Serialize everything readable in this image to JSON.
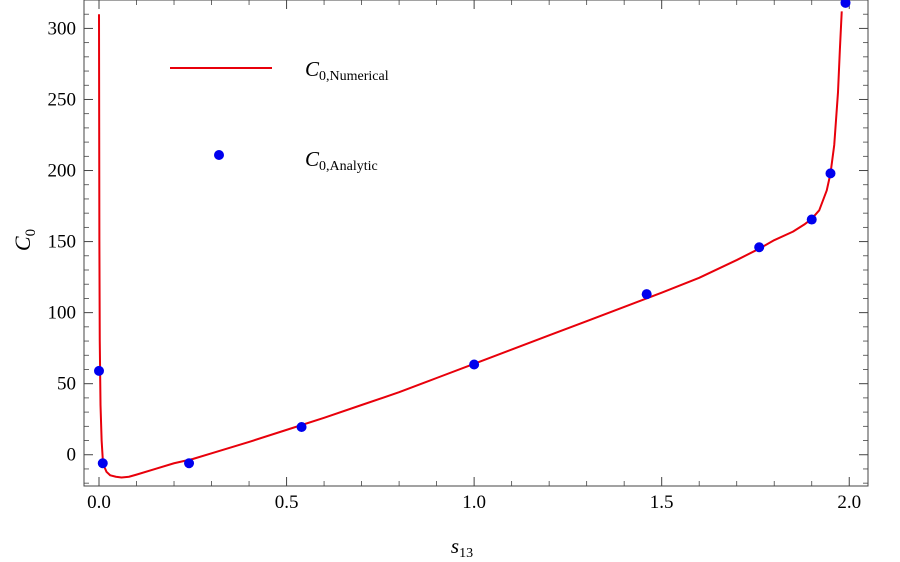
{
  "chart_data": {
    "type": "line",
    "title": "",
    "xlabel": {
      "base": "s",
      "sub": "13"
    },
    "ylabel": {
      "base": "C",
      "sub": "0"
    },
    "xlim": [
      -0.04,
      2.05
    ],
    "ylim": [
      -22,
      320
    ],
    "x_ticks": [
      0.0,
      0.5,
      1.0,
      1.5,
      2.0
    ],
    "x_tick_labels": [
      "0.0",
      "0.5",
      "1.0",
      "1.5",
      "2.0"
    ],
    "y_ticks": [
      0,
      50,
      100,
      150,
      200,
      250,
      300
    ],
    "y_tick_labels": [
      "0",
      "50",
      "100",
      "150",
      "200",
      "250",
      "300"
    ],
    "grid": false,
    "legend_position": "top-left",
    "series": [
      {
        "name": {
          "base": "C",
          "sub": "0,Numerical"
        },
        "kind": "line",
        "color": "#e8000b",
        "x": [
          0.0,
          0.001,
          0.002,
          0.004,
          0.007,
          0.01,
          0.015,
          0.02,
          0.03,
          0.045,
          0.06,
          0.08,
          0.1,
          0.15,
          0.2,
          0.25,
          0.3,
          0.4,
          0.5,
          0.6,
          0.7,
          0.8,
          0.9,
          1.0,
          1.1,
          1.2,
          1.3,
          1.4,
          1.5,
          1.6,
          1.7,
          1.76,
          1.8,
          1.85,
          1.88,
          1.9,
          1.92,
          1.94,
          1.95,
          1.96,
          1.97,
          1.975,
          1.98
        ],
        "y": [
          310,
          150,
          80,
          35,
          10,
          -3,
          -9,
          -12,
          -14.5,
          -15.5,
          -16,
          -15.5,
          -14,
          -10,
          -6,
          -3,
          1,
          9,
          17.5,
          26,
          35,
          44,
          54,
          64,
          74,
          84,
          94,
          104,
          114,
          124.5,
          137,
          145,
          151,
          157,
          162,
          166,
          172,
          186,
          198,
          218,
          255,
          285,
          312
        ]
      },
      {
        "name": {
          "base": "C",
          "sub": "0,Analytic"
        },
        "kind": "scatter",
        "color": "#0000ee",
        "x": [
          0.0,
          0.01,
          0.24,
          0.54,
          1.0,
          1.46,
          1.76,
          1.9,
          1.95,
          1.99
        ],
        "y": [
          59,
          -6,
          -6,
          19.5,
          63.5,
          113,
          146,
          165.5,
          198,
          318
        ]
      }
    ]
  }
}
